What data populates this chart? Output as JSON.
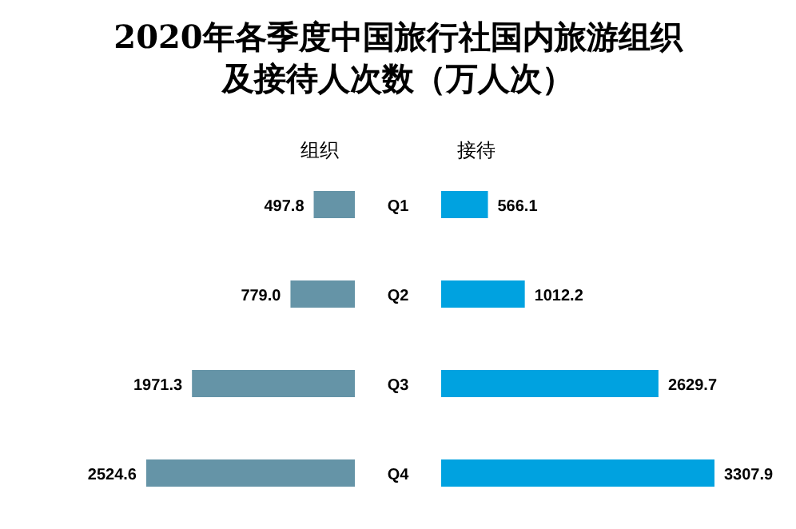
{
  "chart_data": [
    {
      "type": "bar",
      "orientation": "horizontal",
      "title": "2020年各季度中国旅行社国内旅游组织及接待人次数（万人次）",
      "categories": [
        "Q1",
        "Q2",
        "Q3",
        "Q4"
      ],
      "series": [
        {
          "name": "组织",
          "color": "#6594a7",
          "values": [
            497.8,
            779.0,
            1971.3,
            2524.6
          ],
          "value_labels": [
            "497.8",
            "779.0",
            "1971.3",
            "2524.6"
          ]
        }
      ]
    },
    {
      "type": "bar",
      "orientation": "horizontal",
      "categories": [
        null,
        null,
        null,
        null
      ],
      "series": [
        {
          "name": "接待",
          "color": "#00a2e0",
          "values": [
            566.1,
            1012.2,
            2629.7,
            3307.9
          ],
          "value_labels": [
            "566.1",
            "1012.2",
            "2629.7",
            "3307.9"
          ]
        }
      ]
    }
  ]
}
